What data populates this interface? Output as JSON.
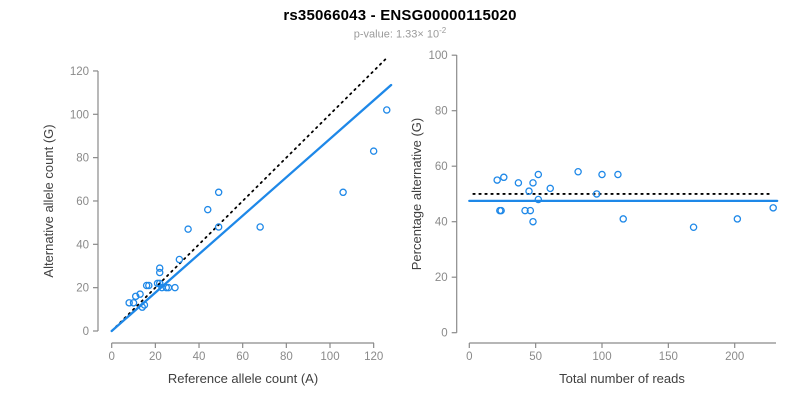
{
  "title": "rs35066043 - ENSG00000115020",
  "subtitle": {
    "text": "p-value: 1.33× 10",
    "exponent": "-2"
  },
  "colors": {
    "accent_blue": "#1E88E8",
    "identity_black": "#000000",
    "axis_gray": "#8a8a8a",
    "label_dark": "#404040"
  },
  "chart_data": [
    {
      "type": "scatter",
      "name": "allele-counts",
      "xlabel": "Reference allele count (A)",
      "ylabel": "Alternative allele count (G)",
      "xticks": [
        0,
        20,
        40,
        60,
        80,
        100,
        120
      ],
      "yticks": [
        0,
        20,
        40,
        60,
        80,
        100,
        120
      ],
      "xlim": [
        0,
        128
      ],
      "ylim": [
        0,
        128
      ],
      "points": [
        [
          8,
          13
        ],
        [
          10,
          13
        ],
        [
          11,
          16
        ],
        [
          13,
          17
        ],
        [
          14,
          11
        ],
        [
          15,
          12
        ],
        [
          16,
          21
        ],
        [
          17,
          21
        ],
        [
          21,
          22
        ],
        [
          22,
          22
        ],
        [
          22,
          27
        ],
        [
          22,
          29
        ],
        [
          23,
          20
        ],
        [
          25,
          20
        ],
        [
          26,
          20
        ],
        [
          29,
          20
        ],
        [
          31,
          33
        ],
        [
          35,
          47
        ],
        [
          44,
          56
        ],
        [
          49,
          48
        ],
        [
          49,
          64
        ],
        [
          68,
          48
        ],
        [
          106,
          64
        ],
        [
          120,
          83
        ],
        [
          126,
          102
        ]
      ],
      "lines": [
        {
          "name": "identity-line",
          "style": "dotted",
          "color": "#000000",
          "x1": 0,
          "y1": 0,
          "x2": 126,
          "y2": 126
        },
        {
          "name": "fit-line",
          "style": "solid",
          "color": "#1E88E8",
          "x1": 0,
          "y1": 0,
          "x2": 128,
          "y2": 113.5
        }
      ]
    },
    {
      "type": "scatter",
      "name": "percentage-vs-reads",
      "xlabel": "Total number of reads",
      "ylabel": "Percentage alternative (G)",
      "xticks": [
        0,
        50,
        100,
        150,
        200
      ],
      "yticks": [
        0,
        20,
        40,
        60,
        80,
        100
      ],
      "xlim": [
        0,
        232
      ],
      "ylim": [
        0,
        100
      ],
      "points": [
        [
          21,
          55
        ],
        [
          23,
          44
        ],
        [
          24,
          44
        ],
        [
          26,
          56
        ],
        [
          37,
          54
        ],
        [
          42,
          44
        ],
        [
          45,
          51
        ],
        [
          46,
          44
        ],
        [
          48,
          54
        ],
        [
          48,
          40
        ],
        [
          52,
          57
        ],
        [
          52,
          48
        ],
        [
          61,
          52
        ],
        [
          82,
          58
        ],
        [
          96,
          50
        ],
        [
          100,
          57
        ],
        [
          112,
          57
        ],
        [
          116,
          41
        ],
        [
          169,
          38
        ],
        [
          202,
          41
        ],
        [
          229,
          45
        ]
      ],
      "lines": [
        {
          "name": "null-line",
          "style": "dotted",
          "color": "#000000",
          "x1": 3,
          "y1": 50,
          "x2": 226,
          "y2": 50
        },
        {
          "name": "mean-line",
          "style": "solid",
          "color": "#1E88E8",
          "x1": 0,
          "y1": 47.5,
          "x2": 232,
          "y2": 47.5
        }
      ]
    }
  ]
}
